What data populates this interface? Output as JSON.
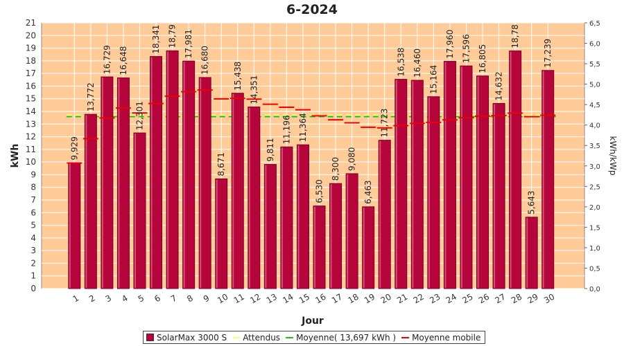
{
  "chart_data": {
    "type": "bar",
    "title": "6-2024",
    "xlabel": "Jour",
    "ylabel": "kWh",
    "y2label": "kWh/kWp",
    "ylim": [
      0,
      21
    ],
    "y2lim": [
      0,
      6.5
    ],
    "yticks": [
      "0",
      "1",
      "2",
      "3",
      "4",
      "5",
      "6",
      "7",
      "8",
      "9",
      "10",
      "11",
      "12",
      "13",
      "14",
      "15",
      "16",
      "17",
      "18",
      "19",
      "20",
      "21"
    ],
    "y2ticks": [
      "0,0",
      "0,5",
      "1,0",
      "1,5",
      "2,0",
      "2,5",
      "3,0",
      "3,5",
      "4,0",
      "4,5",
      "5,0",
      "5,5",
      "6,0",
      "6,5"
    ],
    "categories": [
      "1",
      "2",
      "3",
      "4",
      "5",
      "6",
      "7",
      "8",
      "9",
      "10",
      "11",
      "12",
      "13",
      "14",
      "15",
      "16",
      "17",
      "18",
      "19",
      "20",
      "21",
      "22",
      "23",
      "24",
      "25",
      "26",
      "27",
      "28",
      "29",
      "30"
    ],
    "series": [
      {
        "name": "SolarMax 3000 S",
        "values": [
          9.929,
          13.772,
          16.729,
          16.648,
          12.301,
          18.341,
          18.79,
          17.981,
          16.68,
          8.671,
          15.438,
          14.351,
          9.811,
          11.196,
          11.364,
          6.53,
          8.3,
          9.08,
          6.463,
          11.723,
          16.538,
          16.46,
          15.164,
          17.96,
          17.596,
          16.805,
          14.632,
          18.78,
          5.643,
          17.239
        ],
        "labels": [
          "9,929",
          "13,772",
          "16,729",
          "16,648",
          "12,301",
          "18,341",
          "18,79",
          "17,981",
          "16,680",
          "8,671",
          "15,438",
          "14,351",
          "9,811",
          "11,196",
          "11,364",
          "6,530",
          "8,300",
          "9,080",
          "6,463",
          "11,723",
          "16,538",
          "16,460",
          "15,164",
          "17,960",
          "17,596",
          "16,805",
          "14,632",
          "18,78",
          "5,643",
          "17,239"
        ],
        "color": "#b5053a"
      },
      {
        "name": "Attendus",
        "value": 13.7,
        "color": "#ffff66"
      },
      {
        "name": "Moyenne( 13,697 kWh )",
        "value": 13.697,
        "color": "#22bb22"
      },
      {
        "name": "Moyenne mobile",
        "values": [
          9.929,
          11.85,
          13.48,
          14.27,
          13.88,
          14.62,
          15.21,
          15.56,
          15.69,
          14.99,
          15.03,
          14.97,
          14.57,
          14.33,
          14.13,
          13.65,
          13.34,
          13.1,
          12.75,
          12.7,
          12.88,
          13.05,
          13.13,
          13.33,
          13.5,
          13.63,
          13.67,
          13.86,
          13.58,
          13.7
        ],
        "color": "#ee0000"
      }
    ],
    "grid": true,
    "legend_position": "bottom"
  },
  "colors": {
    "plot_background": "#ffcc99",
    "bar_fill": "#b5053a",
    "bar_edge": "#7a0026",
    "expected_line": "#ffff66",
    "average_line": "#22bb22",
    "moving_average": "#ee0000"
  }
}
